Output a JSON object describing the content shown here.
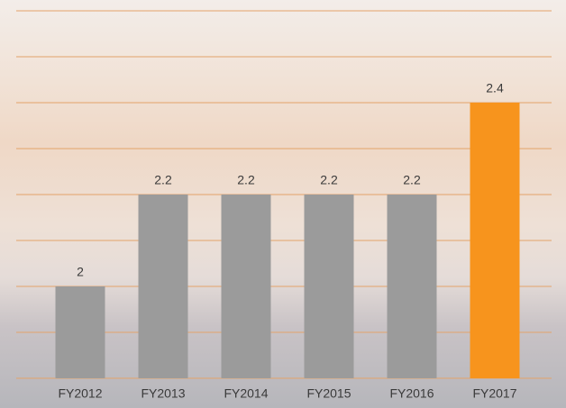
{
  "chart_data": {
    "type": "bar",
    "categories": [
      "FY2012",
      "FY2013",
      "FY2014",
      "FY2015",
      "FY2016",
      "FY2017"
    ],
    "values": [
      2,
      2.2,
      2.2,
      2.2,
      2.2,
      2.4
    ],
    "colors": [
      "#9b9b9b",
      "#9b9b9b",
      "#9b9b9b",
      "#9b9b9b",
      "#9b9b9b",
      "#f7941d"
    ],
    "ylim": [
      1.8,
      2.6
    ],
    "yticks": [
      1.8,
      1.9,
      2.0,
      2.1,
      2.2,
      2.3,
      2.4,
      2.5,
      2.6
    ],
    "grid": true
  }
}
